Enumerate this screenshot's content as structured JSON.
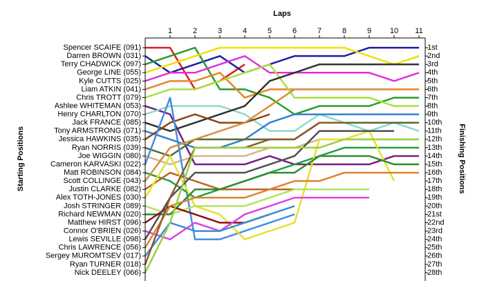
{
  "chart_data": {
    "type": "line",
    "title": "Laps",
    "y_label_left": "Starting Positions",
    "y_label_right": "Finishing Positions",
    "x": [
      0,
      1,
      2,
      3,
      4,
      5,
      6,
      7,
      8,
      9,
      10,
      11
    ],
    "xlim": [
      0,
      11.25
    ],
    "xticks": [
      1,
      2,
      3,
      4,
      5,
      6,
      7,
      8,
      9,
      10,
      11
    ],
    "ylim": [
      0,
      29
    ],
    "y_inverted": true,
    "yticks": [
      1,
      2,
      3,
      4,
      5,
      6,
      7,
      8,
      9,
      10,
      11,
      12,
      13,
      14,
      15,
      16,
      17,
      18,
      19,
      20,
      21,
      22,
      23,
      24,
      25,
      26,
      27,
      28
    ],
    "finishing_positions": [
      "1st",
      "2nd",
      "3rd",
      "4th",
      "5th",
      "6th",
      "7th",
      "8th",
      "9th",
      "10th",
      "11th",
      "12th",
      "13th",
      "14th",
      "15th",
      "16th",
      "17th",
      "18th",
      "19th",
      "20th",
      "21st",
      "22nd",
      "23rd",
      "24th",
      "25th",
      "26th",
      "27th",
      "28th"
    ],
    "series": [
      {
        "name": "Spencer SCAIFE (091)",
        "color": "#e41a1c",
        "values": [
          1,
          1,
          6,
          5,
          3,
          null,
          null,
          null,
          null,
          null,
          null,
          null
        ]
      },
      {
        "name": "Darren BROWN (031)",
        "color": "#1c1ca0",
        "values": [
          2,
          4,
          3,
          2,
          4,
          3,
          2,
          2,
          2,
          1,
          1,
          1
        ]
      },
      {
        "name": "Terry CHADWICK (097)",
        "color": "#2a9a2a",
        "values": [
          3,
          2,
          1,
          6,
          6,
          7,
          9,
          8,
          8,
          8,
          7,
          7
        ]
      },
      {
        "name": "George LINE (055)",
        "color": "#f0e000",
        "values": [
          4,
          3,
          2,
          1,
          1,
          1,
          1,
          1,
          1,
          2,
          3,
          2
        ]
      },
      {
        "name": "Kyle CUTTS (025)",
        "color": "#e030d8",
        "values": [
          5,
          4,
          4,
          3,
          2,
          4,
          4,
          4,
          4,
          4,
          5,
          4
        ]
      },
      {
        "name": "Liam ATKIN (041)",
        "color": "#e8832a",
        "values": [
          6,
          5,
          5,
          4,
          7,
          6,
          6,
          6,
          6,
          6,
          6,
          6
        ]
      },
      {
        "name": "Chris TROTT (079)",
        "color": "#a8e040",
        "values": [
          7,
          6,
          6,
          5,
          4,
          3,
          7,
          7,
          7,
          7,
          8,
          8
        ]
      },
      {
        "name": "Ashlee WHITEMAN (053)",
        "color": "#702080",
        "values": [
          8,
          9,
          15,
          15,
          15,
          14,
          15,
          15,
          15,
          15,
          14,
          14
        ]
      },
      {
        "name": "Henry CHARLTON (070)",
        "color": "#90d8c8",
        "values": [
          9,
          8,
          8,
          8,
          9,
          11,
          11,
          9,
          10,
          11,
          10,
          11
        ]
      },
      {
        "name": "Jack FRANCE (085)",
        "color": "#303030",
        "values": [
          10,
          11,
          10,
          9,
          8,
          5,
          4,
          3,
          3,
          3,
          3,
          3
        ]
      },
      {
        "name": "Tony ARMSTRONG (071)",
        "color": "#3080d0",
        "values": [
          11,
          12,
          13,
          13,
          12,
          10,
          9,
          9,
          9,
          9,
          9,
          9
        ]
      },
      {
        "name": "Jessica HAWKINS (035)",
        "color": "#8b4513",
        "values": [
          12,
          10,
          9,
          10,
          10,
          9,
          null,
          null,
          null,
          null,
          null,
          null
        ]
      },
      {
        "name": "Ryan NORRIS (039)",
        "color": "#556b2f",
        "values": [
          13,
          14,
          12,
          12,
          12,
          12,
          12,
          10,
          10,
          10,
          10,
          10
        ]
      },
      {
        "name": "Joe WIGGIN (080)",
        "color": "#d2b48c",
        "values": [
          14,
          15,
          14,
          14,
          14,
          13,
          13,
          12,
          12,
          12,
          12,
          12
        ]
      },
      {
        "name": "Cameron KARVASKI (022)",
        "color": "#4090e0",
        "values": [
          15,
          7,
          24,
          24,
          23,
          22,
          21,
          null,
          null,
          null,
          null,
          null
        ]
      },
      {
        "name": "Matt ROBINSON (084)",
        "color": "#20a040",
        "values": [
          16,
          17,
          19,
          18,
          17,
          16,
          15,
          14,
          13,
          13,
          13,
          13
        ]
      },
      {
        "name": "Scott COLLINGE (043)",
        "color": "#d49040",
        "values": [
          17,
          13,
          12,
          11,
          10,
          8,
          6,
          6,
          6,
          6,
          6,
          null
        ]
      },
      {
        "name": "Justin CLARKE (082)",
        "color": "#c06020",
        "values": [
          18,
          16,
          17,
          18,
          18,
          18,
          18,
          18,
          18,
          18,
          null,
          null
        ]
      },
      {
        "name": "Alex TOTH-JONES (030)",
        "color": "#e8e030",
        "values": [
          19,
          14,
          20,
          21,
          24,
          23,
          22,
          12,
          12,
          11,
          17,
          null
        ]
      },
      {
        "name": "Josh STRINGER (089)",
        "color": "#b8e060",
        "values": [
          20,
          21,
          20,
          20,
          20,
          19,
          18,
          18,
          18,
          18,
          null,
          null
        ]
      },
      {
        "name": "Richard NEWMAN (020)",
        "color": "#2c8c2c",
        "values": [
          21,
          21,
          18,
          18,
          17,
          16,
          16,
          14,
          14,
          14,
          15,
          15
        ]
      },
      {
        "name": "Matthew HIRST (096)",
        "color": "#8c1010",
        "values": [
          22,
          20,
          21,
          22,
          22,
          21,
          null,
          null,
          null,
          null,
          null,
          null
        ]
      },
      {
        "name": "Connor O'BRIEN (026)",
        "color": "#e040e0",
        "values": [
          23,
          24,
          22,
          23,
          21,
          20,
          19,
          19,
          19,
          19,
          null,
          null
        ]
      },
      {
        "name": "Lewis SEVILLE (098)",
        "color": "#505050",
        "values": [
          24,
          19,
          16,
          16,
          16,
          15,
          14,
          11,
          11,
          11,
          11,
          null
        ]
      },
      {
        "name": "Chris LAWRENCE (056)",
        "color": "#e08030",
        "values": [
          25,
          20,
          19,
          19,
          19,
          18,
          17,
          17,
          16,
          16,
          16,
          16
        ]
      },
      {
        "name": "Sergey MUROMTSEV (017)",
        "color": "#3c8cd8",
        "values": [
          26,
          22,
          23,
          23,
          22,
          21,
          20,
          null,
          null,
          null,
          null,
          null
        ]
      },
      {
        "name": "Ryan TURNER (018)",
        "color": "#8a5a2a",
        "values": [
          27,
          19,
          13,
          13,
          13,
          12,
          12,
          10,
          10,
          null,
          null,
          null
        ]
      },
      {
        "name": "Nick DEELEY (066)",
        "color": "#9ad040",
        "values": [
          28,
          22,
          13,
          13,
          13,
          13,
          13,
          13,
          12,
          12,
          12,
          12
        ]
      }
    ]
  }
}
